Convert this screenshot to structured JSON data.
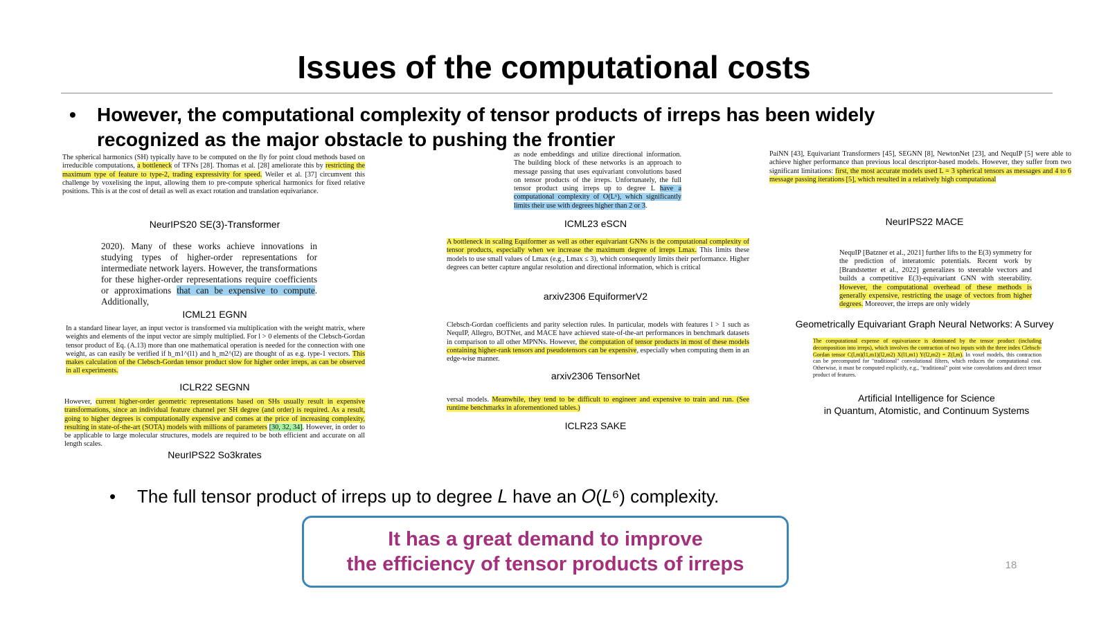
{
  "slide": {
    "title": "Issues of the computational costs",
    "bullet_main": "However, the computational complexity of tensor products of irreps has been widely recognized as the major obstacle to pushing the frontier",
    "bullet_sub": "The full tensor product of irreps up to degree 𝐿 have an 𝑂(𝐿⁶) complexity.",
    "bullet_symbol": "•",
    "callout_line1": "It has a great demand to improve",
    "callout_line2": "the efficiency of tensor products of irreps",
    "page_number": "18"
  },
  "papers": [
    {
      "caption": "NeurIPS20  SE(3)-Transformer",
      "text_a": "The spherical harmonics (SH) typically have to be computed on the fly for point cloud methods based on irreducible computations, ",
      "hl": "a bottleneck",
      "text_b": " of TFNs [28]. Thomas et al. [28] ameliorate this by ",
      "hl2": "restricting the maximum type of feature to type-2, trading expressivity for speed.",
      "text_c": " Weiler et al. [37] circumvent this challenge by voxelising the input, allowing them to pre-compute spherical harmonics for fixed relative positions. This is at the cost of detail as well as exact rotation and translation equivariance."
    },
    {
      "caption": "ICML21  EGNN",
      "text_a": "2020). Many of these works achieve innovations in studying types of higher-order representations for intermediate network layers. However, the transformations for these higher-order representations require coefficients or approximations ",
      "hl": "that can be expensive to compute",
      "text_b": ". Additionally,"
    },
    {
      "caption": "ICLR22  SEGNN",
      "text_a": "In a standard linear layer, an input vector is transformed via multiplication with the weight matrix, where weights and elements of the input vector are simply multiplied. For l > 0 elements of the Clebsch-Gordan tensor product of Eq. (A.13) more than one mathematical operation is needed for the connection with one weight, as can easily be verified if h_m1^(l1) and h_m2^(l2) are thought of as e.g. type-1 vectors. ",
      "hl": "This makes calculation of the Clebsch-Gordan tensor product slow for higher order irreps, as can be observed in all experiments."
    },
    {
      "caption": "NeurIPS22  So3krates",
      "text_a": "However, ",
      "hl": "current higher-order geometric representations based on SHs usually result in expensive transformations, since an individual feature channel per SH degree (and order) is required. As a result, going to higher degrees is computationally expensive and comes at the price of increasing complexity, resulting in state-of-the-art (SOTA) models with millions of parameters",
      "hl_refs": "[30, 32, 34]",
      "text_b": ". However, in order to be applicable to large molecular structures, models are required to be both efficient and accurate on all length scales."
    },
    {
      "caption": "ICML23  eSCN",
      "text_a": "as node embeddings and utilize directional information. The building block of these networks is an approach to message passing that uses equivariant convolutions based on tensor products of the irreps. Unfortunately, the full tensor product using irreps up to degree L ",
      "hl": "have a computational complexity of O(L⁶), which significantly limits their use with degrees higher than 2 or 3",
      "text_b": "."
    },
    {
      "caption": "arxiv2306  EquiformerV2",
      "hl": "A bottleneck in scaling Equiformer as well as other equivariant GNNs is the computational complexity of tensor products, especially when we increase the maximum degree of irreps Lmax.",
      "text_a": " This limits these models to use small values of Lmax (e.g., Lmax ≤ 3), which consequently limits their performance. Higher degrees can better capture angular resolution and directional information, which is critical"
    },
    {
      "caption": "arxiv2306  TensorNet",
      "text_a": "Clebsch-Gordan coefficients and parity selection rules. In particular, models with features l > 1 such as NequIP, Allegro, BOTNet, and MACE have achieved state-of-the-art performances in benchmark datasets in comparison to all other MPNNs. However, ",
      "hl": "the computation of tensor products in most of these models containing higher-rank tensors and pseudotensors can be expensive",
      "text_b": ", especially when computing them in an edge-wise manner."
    },
    {
      "caption": "ICLR23  SAKE",
      "text_a": "versal models. ",
      "hl": "Meanwhile, they tend to be difficult to engineer and expensive to train and run. (See runtime benchmarks in aforementioned tables.)"
    },
    {
      "caption": "NeurIPS22  MACE",
      "text_a": "PaiNN [43], Equivariant Transformers [45], SEGNN [8], NewtonNet [23], and NequIP [5] were able to achieve higher performance than previous local descriptor-based models. However, they suffer from two significant limitations: ",
      "hl": "first, the most accurate models used L = 3 spherical tensors as messages and 4 to 6 message passing iterations [5], which resulted in a relatively high computational"
    },
    {
      "caption": "Geometrically  Equivariant  Graph  Neural  Networks:  A Survey",
      "text_a": "NequIP [Batzner et al., 2021] further lifts to the E(3) symmetry for the prediction of interatomic potentials. Recent work by [Brandstetter et al., 2022] generalizes to steerable vectors and builds a competitive E(3)-equivariant GNN with steerability. ",
      "hl": "However, the computational overhead of these methods is generally expensive, restricting the usage of vectors from higher degrees.",
      "text_b": " Moreover, the irreps are only widely"
    },
    {
      "caption_line1": "Artificial  Intelligence  for Science",
      "caption_line2": "in Quantum, Atomistic, and Continuum Systems",
      "hl": "The computational expense of equivariance is dominated by the tensor product (including decomposition into irreps), which involves the contraction of two inputs with the three index Clebsch-Gordan tensor C(l,m)(l1,m1)(l2,m2) X(l1,m1) Y(l2,m2) = Z(l,m).",
      "text_a": " In voxel models, this contraction can be precomputed for \"traditional\" convolutional filters, which reduces the computational cost. Otherwise, it must be computed explicitly, e.g., \"traditional\" point wise convolutions and direct tensor product of features."
    }
  ]
}
